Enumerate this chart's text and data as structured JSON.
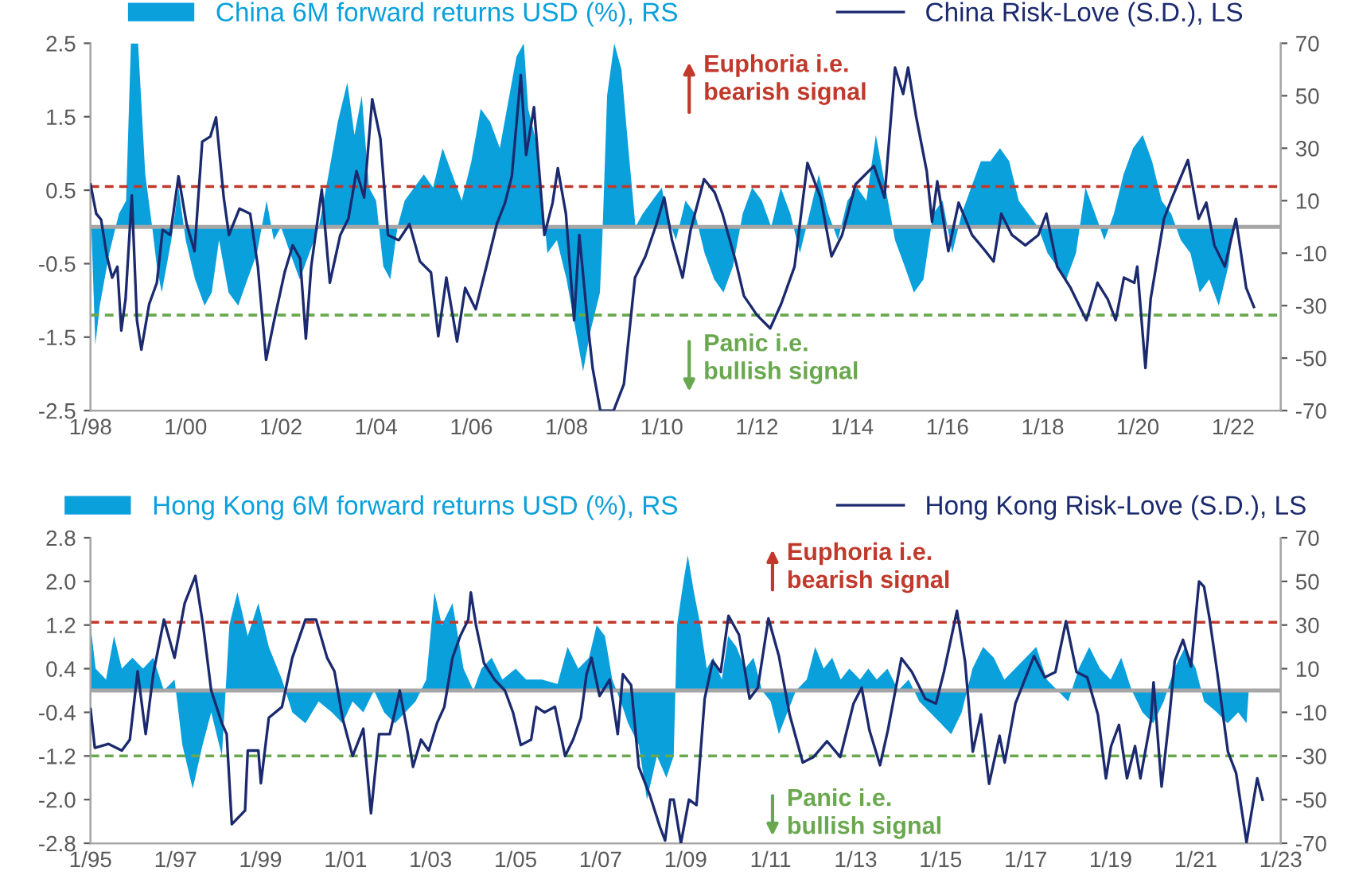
{
  "chart_data": [
    {
      "type": "area",
      "legend": "top",
      "xlim": [
        "1998-01",
        "2023-01"
      ],
      "xticks": [
        {
          "value": "1998-01",
          "label": "1/98"
        },
        {
          "value": "2000-01",
          "label": "1/00"
        },
        {
          "value": "2002-01",
          "label": "1/02"
        },
        {
          "value": "2004-01",
          "label": "1/04"
        },
        {
          "value": "2006-01",
          "label": "1/06"
        },
        {
          "value": "2008-01",
          "label": "1/08"
        },
        {
          "value": "2010-01",
          "label": "1/10"
        },
        {
          "value": "2012-01",
          "label": "1/12"
        },
        {
          "value": "2014-01",
          "label": "1/14"
        },
        {
          "value": "2016-01",
          "label": "1/16"
        },
        {
          "value": "2018-01",
          "label": "1/18"
        },
        {
          "value": "2020-01",
          "label": "1/20"
        },
        {
          "value": "2022-01",
          "label": "1/22"
        }
      ],
      "ylim": [
        -2.5,
        2.5
      ],
      "yticks": [
        -2.5,
        -1.5,
        -0.5,
        0.5,
        1.5,
        2.5
      ],
      "y2lim": [
        -70,
        70
      ],
      "y2ticks": [
        -70,
        -50,
        -30,
        -10,
        10,
        30,
        50,
        70
      ],
      "series": [
        {
          "name": "China 6M forward returns USD (%), RS",
          "axis": "y2",
          "color": "#0aa0dc",
          "x": [
            "1998-01-01",
            "1998-02-07",
            "1998-03-13",
            "1998-05-25",
            "1998-08-07",
            "1998-10-01",
            "1998-11-07",
            "1999-01-01",
            "1999-02-25",
            "1999-04-19",
            "1999-05-25",
            "1999-07-01",
            "1999-09-13",
            "1999-11-07",
            "2000-01-01",
            "2000-03-13",
            "2000-05-25",
            "2000-07-19",
            "2000-09-13",
            "2000-11-25",
            "2001-02-07",
            "2001-04-19",
            "2001-07-01",
            "2001-09-13",
            "2001-11-07",
            "2002-01-01",
            "2002-03-13",
            "2002-05-25",
            "2002-08-07",
            "2002-10-19",
            "2003-01-01",
            "2003-03-13",
            "2003-05-25",
            "2003-07-19",
            "2003-09-13",
            "2003-11-07",
            "2004-01-01",
            "2004-02-25",
            "2004-04-19",
            "2004-06-13",
            "2004-08-07",
            "2004-10-19",
            "2005-01-01",
            "2005-03-13",
            "2005-05-25",
            "2005-08-07",
            "2005-10-19",
            "2006-01-01",
            "2006-03-13",
            "2006-05-25",
            "2006-08-07",
            "2006-10-19",
            "2006-12-13",
            "2007-02-07",
            "2007-03-13",
            "2007-05-25",
            "2007-07-01",
            "2007-08-07",
            "2007-10-19",
            "2008-01-01",
            "2008-03-13",
            "2008-05-07",
            "2008-07-01",
            "2008-09-13",
            "2008-10-01",
            "2008-11-07",
            "2009-01-01",
            "2009-02-25",
            "2009-04-19",
            "2009-06-13",
            "2009-08-07",
            "2009-10-19",
            "2010-01-01",
            "2010-02-07",
            "2010-04-19",
            "2010-07-01",
            "2010-09-13",
            "2010-11-25",
            "2011-02-07",
            "2011-04-19",
            "2011-07-01",
            "2011-09-13",
            "2011-11-25",
            "2012-02-07",
            "2012-04-19",
            "2012-07-01",
            "2012-09-13",
            "2012-11-25",
            "2013-02-07",
            "2013-04-19",
            "2013-07-01",
            "2013-09-13",
            "2013-11-25",
            "2014-02-07",
            "2014-04-19",
            "2014-07-01",
            "2014-09-13",
            "2014-11-25",
            "2015-02-07",
            "2015-04-19",
            "2015-07-01",
            "2015-09-13",
            "2015-11-25",
            "2016-02-07",
            "2016-04-19",
            "2016-07-01",
            "2016-09-13",
            "2016-11-25",
            "2017-02-07",
            "2017-04-19",
            "2017-07-01",
            "2017-09-13",
            "2017-11-25",
            "2018-02-07",
            "2018-04-19",
            "2018-07-01",
            "2018-09-13",
            "2018-11-25",
            "2019-02-07",
            "2019-04-19",
            "2019-07-01",
            "2019-09-13",
            "2019-11-25",
            "2020-02-07",
            "2020-04-19",
            "2020-07-01",
            "2020-09-13",
            "2020-11-25",
            "2021-02-07",
            "2021-04-19",
            "2021-07-01",
            "2021-09-13",
            "2021-11-25",
            "2022-01-01"
          ],
          "values": [
            10,
            -45,
            -30,
            -10,
            5,
            10,
            70,
            70,
            20,
            0,
            -15,
            -25,
            -5,
            15,
            -5,
            -20,
            -30,
            -25,
            -5,
            -25,
            -30,
            -20,
            -10,
            10,
            -5,
            0,
            -10,
            -20,
            -10,
            0,
            20,
            40,
            55,
            35,
            50,
            15,
            10,
            -15,
            -20,
            0,
            10,
            15,
            20,
            15,
            30,
            20,
            10,
            25,
            45,
            40,
            30,
            50,
            65,
            70,
            45,
            30,
            10,
            -10,
            -5,
            -20,
            -40,
            -55,
            -40,
            -25,
            -5,
            50,
            70,
            60,
            30,
            0,
            5,
            10,
            15,
            5,
            -5,
            10,
            5,
            -10,
            -20,
            -25,
            -15,
            5,
            15,
            10,
            0,
            15,
            5,
            -10,
            5,
            20,
            5,
            -5,
            10,
            15,
            10,
            35,
            15,
            -5,
            -15,
            -25,
            -20,
            5,
            10,
            -10,
            5,
            15,
            25,
            25,
            30,
            25,
            10,
            5,
            0,
            -10,
            -15,
            -20,
            -10,
            15,
            5,
            -5,
            5,
            20,
            30,
            35,
            25,
            10,
            5,
            -5,
            -10,
            -25,
            -20,
            -30,
            -15,
            0
          ]
        },
        {
          "name": "China Risk-Love (S.D.), LS",
          "type": "line",
          "color": "#1b2a6e",
          "x": [
            "1998-01-01",
            "1998-02-14",
            "1998-03-23",
            "1998-05-07",
            "1998-06-16",
            "1998-07-26",
            "1998-08-25",
            "1998-09-27",
            "1998-11-14",
            "1998-12-23",
            "1999-01-26",
            "1999-03-27",
            "1999-05-25",
            "1999-07-08",
            "1999-09-05",
            "1999-11-07",
            "2000-01-08",
            "2000-03-09",
            "2000-05-07",
            "2000-07-08",
            "2000-08-21",
            "2000-10-19",
            "2000-11-28",
            "2001-02-17",
            "2001-05-10",
            "2001-07-08",
            "2001-09-09",
            "2001-11-10",
            "2002-01-29",
            "2002-04-01",
            "2002-05-28",
            "2002-07-11",
            "2002-08-21",
            "2002-11-10",
            "2003-01-11",
            "2003-04-01",
            "2003-06-02",
            "2003-08-03",
            "2003-10-01",
            "2003-12-02",
            "2004-02-03",
            "2004-04-01",
            "2004-06-23",
            "2004-09-13",
            "2004-12-02",
            "2005-02-25",
            "2005-04-22",
            "2005-06-23",
            "2005-09-13",
            "2005-11-14",
            "2006-02-03",
            "2006-04-26",
            "2006-07-15",
            "2006-09-16",
            "2006-11-07",
            "2007-01-15",
            "2007-02-25",
            "2007-04-26",
            "2007-07-15",
            "2007-09-16",
            "2007-10-26",
            "2007-12-27",
            "2008-02-28",
            "2008-04-08",
            "2008-06-09",
            "2008-07-19",
            "2008-09-16",
            "2008-12-27",
            "2009-03-16",
            "2009-06-09",
            "2009-08-28",
            "2009-11-21",
            "2010-01-19",
            "2010-03-20",
            "2010-06-09",
            "2010-08-10",
            "2010-11-21",
            "2011-02-10",
            "2011-04-11",
            "2011-07-22",
            "2011-09-23",
            "2012-01-01",
            "2012-04-11",
            "2012-07-04",
            "2012-10-15",
            "2013-01-22",
            "2013-05-03",
            "2013-07-26",
            "2013-10-15",
            "2014-01-26",
            "2014-06-16",
            "2014-09-05",
            "2014-11-25",
            "2015-01-26",
            "2015-03-05",
            "2015-05-07",
            "2015-07-26",
            "2015-09-05",
            "2015-10-15",
            "2016-01-08",
            "2016-03-27",
            "2016-07-08",
            "2016-10-19",
            "2016-12-20",
            "2017-02-17",
            "2017-05-10",
            "2017-08-21",
            "2017-11-28",
            "2018-01-29",
            "2018-04-22",
            "2018-08-03",
            "2018-12-02",
            "2019-02-25",
            "2019-05-14",
            "2019-07-15",
            "2019-09-16",
            "2019-12-05",
            "2019-12-27",
            "2020-02-28",
            "2020-04-08",
            "2020-07-19",
            "2020-09-20",
            "2021-01-19",
            "2021-04-11",
            "2021-06-09",
            "2021-08-10",
            "2021-10-29",
            "2022-01-22",
            "2022-04-11",
            "2022-06-09"
          ],
          "values": [
            0.58,
            0.18,
            0.1,
            -0.4,
            -0.69,
            -0.54,
            -1.41,
            -0.98,
            0.43,
            -1.27,
            -1.67,
            -1.05,
            -0.76,
            -0.04,
            -0.11,
            0.69,
            0.04,
            -0.33,
            1.16,
            1.23,
            1.49,
            0.4,
            -0.11,
            0.25,
            0.18,
            -0.54,
            -1.81,
            -1.27,
            -0.62,
            -0.25,
            -0.43,
            -1.52,
            -0.54,
            0.51,
            -0.76,
            -0.11,
            0.11,
            0.76,
            0.4,
            1.74,
            1.2,
            -0.11,
            -0.18,
            0.04,
            -0.47,
            -0.62,
            -1.49,
            -0.69,
            -1.56,
            -0.83,
            -1.12,
            -0.54,
            0.04,
            0.33,
            0.69,
            2.07,
            0.98,
            1.63,
            -0.11,
            0.33,
            0.8,
            0.18,
            -1.27,
            -0.11,
            -1.27,
            -1.92,
            -2.5,
            -2.5,
            -2.14,
            -0.69,
            -0.4,
            0.04,
            0.4,
            -0.18,
            -0.69,
            -0.04,
            0.65,
            0.47,
            0.18,
            -0.47,
            -0.94,
            -1.2,
            -1.38,
            -1.05,
            -0.54,
            0.87,
            0.4,
            -0.4,
            -0.11,
            0.58,
            0.83,
            0.4,
            2.17,
            1.81,
            2.17,
            1.49,
            0.76,
            0.07,
            0.62,
            -0.33,
            0.33,
            -0.11,
            -0.33,
            -0.47,
            0.18,
            -0.11,
            -0.25,
            -0.11,
            0.18,
            -0.54,
            -0.83,
            -1.27,
            -0.76,
            -0.98,
            -1.27,
            -0.69,
            -0.76,
            -0.54,
            -1.92,
            -0.98,
            0.11,
            0.4,
            0.91,
            0.11,
            0.33,
            -0.25,
            -0.54,
            0.11,
            -0.83,
            -1.09
          ]
        }
      ],
      "ref_lines": [
        {
          "axis": "y",
          "value": 0,
          "color": "#a6a6a6",
          "line_style": "solid"
        },
        {
          "axis": "y",
          "value": 0.55,
          "color": "#c0392b",
          "line_style": "dashed"
        },
        {
          "axis": "y",
          "value": -1.2,
          "color": "#6aa84f",
          "line_style": "dashed"
        }
      ],
      "annotations": [
        "Euphoria i.e.\nbearish signal",
        "Panic i.e.\nbullish signal"
      ]
    },
    {
      "type": "area",
      "legend": "top",
      "xlim": [
        "1995-01",
        "2023-01"
      ],
      "xticks": [
        {
          "value": "1995-01",
          "label": "1/95"
        },
        {
          "value": "1997-01",
          "label": "1/97"
        },
        {
          "value": "1999-01",
          "label": "1/99"
        },
        {
          "value": "2001-01",
          "label": "1/01"
        },
        {
          "value": "2003-01",
          "label": "1/03"
        },
        {
          "value": "2005-01",
          "label": "1/05"
        },
        {
          "value": "2007-01",
          "label": "1/07"
        },
        {
          "value": "2009-01",
          "label": "1/09"
        },
        {
          "value": "2011-01",
          "label": "1/11"
        },
        {
          "value": "2013-01",
          "label": "1/13"
        },
        {
          "value": "2015-01",
          "label": "1/15"
        },
        {
          "value": "2017-01",
          "label": "1/17"
        },
        {
          "value": "2019-01",
          "label": "1/19"
        },
        {
          "value": "2021-01",
          "label": "1/21"
        },
        {
          "value": "2023-01",
          "label": "1/23"
        }
      ],
      "ylim": [
        -2.8,
        2.8
      ],
      "yticks": [
        -2.8,
        {
          "value": -2,
          "label": "-2.0"
        },
        -1.2,
        -0.4,
        0.4,
        1.2,
        {
          "value": 2,
          "label": "2.0"
        },
        2.8
      ],
      "y2lim": [
        -70,
        70
      ],
      "y2ticks": [
        -70,
        -50,
        -30,
        -10,
        10,
        30,
        50,
        70
      ],
      "series": [
        {
          "name": "Hong Kong 6M forward returns USD (%), RS",
          "axis": "y2",
          "color": "#0aa0dc",
          "x": [
            "1995-01-01",
            "1995-02-14",
            "1995-05-14",
            "1995-07-22",
            "1995-09-27",
            "1995-12-27",
            "1996-03-27",
            "1996-06-23",
            "1996-09-23",
            "1996-12-23",
            "1997-02-28",
            "1997-05-28",
            "1997-08-21",
            "1997-11-03",
            "1998-02-03",
            "1998-04-08",
            "1998-06-16",
            "1998-09-13",
            "1998-12-13",
            "1999-03-13",
            "1999-07-04",
            "1999-10-01",
            "2000-01-22",
            "2000-05-14",
            "2000-09-05",
            "2000-12-05",
            "2001-03-02",
            "2001-06-02",
            "2001-09-02",
            "2001-11-28",
            "2002-02-28",
            "2002-05-28",
            "2002-08-25",
            "2002-11-25",
            "2003-02-03",
            "2003-04-08",
            "2003-07-08",
            "2003-10-11",
            "2004-01-04",
            "2004-03-13",
            "2004-06-09",
            "2004-09-09",
            "2005-01-01",
            "2005-04-01",
            "2005-08-14",
            "2005-12-27",
            "2006-03-23",
            "2006-06-23",
            "2006-09-23",
            "2006-11-28",
            "2007-02-07",
            "2007-04-11",
            "2007-06-23",
            "2007-08-25",
            "2007-11-25",
            "2008-02-03",
            "2008-04-29",
            "2008-07-19",
            "2008-09-20",
            "2008-10-19",
            "2008-12-13",
            "2009-01-19",
            "2009-03-13",
            "2009-05-07",
            "2009-07-01",
            "2009-08-25",
            "2009-11-07",
            "2010-01-01",
            "2010-03-13",
            "2010-05-25",
            "2010-08-07",
            "2010-10-19",
            "2011-01-01",
            "2011-03-13",
            "2011-05-25",
            "2011-08-07",
            "2011-11-07",
            "2012-01-19",
            "2012-04-01",
            "2012-06-13",
            "2012-08-25",
            "2012-11-07",
            "2013-02-07",
            "2013-04-19",
            "2013-07-01",
            "2013-10-01",
            "2014-01-01",
            "2014-04-01",
            "2014-07-01",
            "2014-10-01",
            "2015-01-01",
            "2015-04-01",
            "2015-07-01",
            "2015-10-01",
            "2016-01-01",
            "2016-04-01",
            "2016-07-01",
            "2016-10-01",
            "2017-01-01",
            "2017-04-01",
            "2017-07-01",
            "2017-10-01",
            "2018-01-01",
            "2018-04-01",
            "2018-07-01",
            "2018-10-01",
            "2019-01-01",
            "2019-04-01",
            "2019-07-01",
            "2019-10-01",
            "2020-01-01",
            "2020-04-01",
            "2020-07-01",
            "2020-10-01",
            "2021-01-01",
            "2021-03-13",
            "2021-07-01",
            "2021-10-01",
            "2022-01-01",
            "2022-03-13",
            "2022-04-01"
          ],
          "values": [
            30,
            10,
            5,
            25,
            10,
            15,
            10,
            15,
            0,
            5,
            -25,
            -45,
            -25,
            -10,
            -30,
            30,
            45,
            25,
            40,
            20,
            5,
            -10,
            -15,
            -5,
            -10,
            -15,
            -5,
            -10,
            0,
            -10,
            -15,
            -10,
            -5,
            5,
            45,
            30,
            40,
            10,
            0,
            10,
            15,
            5,
            10,
            5,
            5,
            3,
            20,
            10,
            15,
            30,
            25,
            5,
            -5,
            -15,
            -25,
            -50,
            -30,
            -40,
            -30,
            30,
            50,
            62,
            45,
            30,
            10,
            15,
            5,
            25,
            20,
            10,
            15,
            0,
            -5,
            -20,
            -10,
            0,
            5,
            20,
            10,
            15,
            5,
            10,
            5,
            10,
            5,
            10,
            0,
            5,
            -5,
            -10,
            -15,
            -20,
            -10,
            10,
            20,
            15,
            5,
            10,
            15,
            20,
            5,
            0,
            -5,
            10,
            20,
            10,
            5,
            15,
            0,
            -10,
            -15,
            -5,
            10,
            20,
            10,
            -5,
            -10,
            -15,
            -10,
            -15,
            0
          ]
        },
        {
          "name": "Hong Kong Risk-Love (S.D.), LS",
          "type": "line",
          "color": "#1b2a6e",
          "x": [
            "1995-01-01",
            "1995-02-07",
            "1995-06-05",
            "1995-09-27",
            "1995-12-05",
            "1996-02-10",
            "1996-04-19",
            "1996-06-23",
            "1996-09-23",
            "1996-12-23",
            "1997-03-20",
            "1997-06-20",
            "1997-08-25",
            "1997-11-03",
            "1998-02-03",
            "1998-03-16",
            "1998-04-29",
            "1998-08-21",
            "1998-09-13",
            "1998-12-13",
            "1999-01-04",
            "1999-03-13",
            "1999-07-04",
            "1999-10-01",
            "2000-01-22",
            "2000-04-22",
            "2000-07-26",
            "2000-09-27",
            "2000-12-05",
            "2001-03-02",
            "2001-06-02",
            "2001-08-07",
            "2001-10-15",
            "2002-01-15",
            "2002-04-11",
            "2002-06-20",
            "2002-08-03",
            "2002-10-11",
            "2002-12-16",
            "2003-02-25",
            "2003-04-29",
            "2003-07-08",
            "2003-09-13",
            "2003-11-21",
            "2003-12-13",
            "2004-01-26",
            "2004-04-04",
            "2004-07-04",
            "2004-10-01",
            "2004-12-09",
            "2005-02-14",
            "2005-05-14",
            "2005-06-27",
            "2005-09-05",
            "2005-12-05",
            "2006-03-02",
            "2006-05-10",
            "2006-07-15",
            "2006-09-02",
            "2006-10-15",
            "2006-12-23",
            "2007-03-20",
            "2007-05-28",
            "2007-07-11",
            "2007-09-20",
            "2007-11-25",
            "2008-02-25",
            "2008-05-25",
            "2008-07-08",
            "2008-08-21",
            "2008-09-20",
            "2008-11-21",
            "2009-01-29",
            "2009-04-04",
            "2009-06-13",
            "2009-08-21",
            "2009-10-29",
            "2010-01-04",
            "2010-04-04",
            "2010-07-04",
            "2010-09-13",
            "2010-12-13",
            "2011-03-13",
            "2011-06-13",
            "2011-10-04",
            "2012-01-04",
            "2012-04-29",
            "2012-08-21",
            "2012-12-13",
            "2013-02-21",
            "2013-04-29",
            "2013-07-29",
            "2013-10-04",
            "2014-01-29",
            "2014-04-29",
            "2014-08-21",
            "2014-11-21",
            "2015-01-29",
            "2015-05-21",
            "2015-07-29",
            "2015-10-04",
            "2015-12-13",
            "2016-02-21",
            "2016-05-21",
            "2016-07-04",
            "2016-10-04",
            "2017-03-13",
            "2017-06-13",
            "2017-09-13",
            "2017-12-13",
            "2018-03-13",
            "2018-06-13",
            "2018-09-13",
            "2018-11-21",
            "2019-01-04",
            "2019-03-13",
            "2019-05-21",
            "2019-07-29",
            "2019-09-13",
            "2019-12-13",
            "2020-01-04",
            "2020-03-13",
            "2020-05-21",
            "2020-07-04",
            "2020-09-13",
            "2020-11-21",
            "2021-01-29",
            "2021-03-13",
            "2021-04-29",
            "2021-07-04",
            "2021-10-04",
            "2021-12-13",
            "2022-03-13",
            "2022-05-21",
            "2022-06-13",
            "2022-07-29"
          ],
          "values": [
            -0.34,
            -1.05,
            -0.98,
            -1.1,
            -0.9,
            0.35,
            -0.8,
            0.3,
            1.3,
            0.6,
            1.6,
            2.1,
            1.2,
            0.0,
            -0.6,
            -0.8,
            -2.45,
            -2.2,
            -1.1,
            -1.1,
            -1.7,
            -0.5,
            -0.3,
            0.6,
            1.3,
            1.3,
            0.6,
            0.35,
            -0.5,
            -1.2,
            -0.7,
            -2.25,
            -0.8,
            -0.8,
            0.0,
            -0.8,
            -1.4,
            -0.9,
            -1.1,
            -0.6,
            -0.3,
            0.6,
            1.0,
            1.3,
            1.8,
            1.2,
            0.5,
            0.2,
            0.0,
            -0.4,
            -1.0,
            -0.9,
            -0.3,
            -0.4,
            -0.3,
            -1.2,
            -0.9,
            -0.5,
            0.3,
            0.6,
            -0.1,
            0.2,
            -0.8,
            0.3,
            0.1,
            -1.4,
            -1.9,
            -2.5,
            -2.75,
            -2.0,
            -2.0,
            -2.8,
            -2.0,
            -2.1,
            -0.15,
            0.54,
            0.34,
            1.37,
            1.02,
            -0.15,
            0.05,
            1.32,
            0.63,
            -0.44,
            -1.32,
            -1.22,
            -0.93,
            -1.22,
            -0.24,
            0.05,
            -0.73,
            -1.37,
            -0.73,
            0.59,
            0.34,
            -0.15,
            -0.24,
            0.34,
            1.46,
            0.54,
            -1.12,
            -0.44,
            -1.71,
            -0.83,
            -1.32,
            -0.24,
            0.63,
            0.24,
            0.34,
            1.27,
            0.34,
            0.24,
            -0.44,
            -1.61,
            -1.02,
            -0.63,
            -1.61,
            -1.02,
            -1.61,
            -0.54,
            0.15,
            -1.76,
            -0.44,
            0.54,
            0.93,
            0.44,
            2.0,
            1.9,
            1.32,
            0.34,
            -1.12,
            -1.51,
            -2.78,
            -1.9,
            -1.61,
            -2.0
          ]
        }
      ],
      "ref_lines": [
        {
          "axis": "y",
          "value": 0,
          "color": "#a6a6a6",
          "line_style": "solid"
        },
        {
          "axis": "y",
          "value": 1.25,
          "color": "#c0392b",
          "line_style": "dashed"
        },
        {
          "axis": "y",
          "value": -1.2,
          "color": "#6aa84f",
          "line_style": "dashed"
        }
      ],
      "annotations": [
        "Euphoria i.e.\nbearish signal",
        "Panic i.e.\nbullish signal"
      ]
    }
  ]
}
